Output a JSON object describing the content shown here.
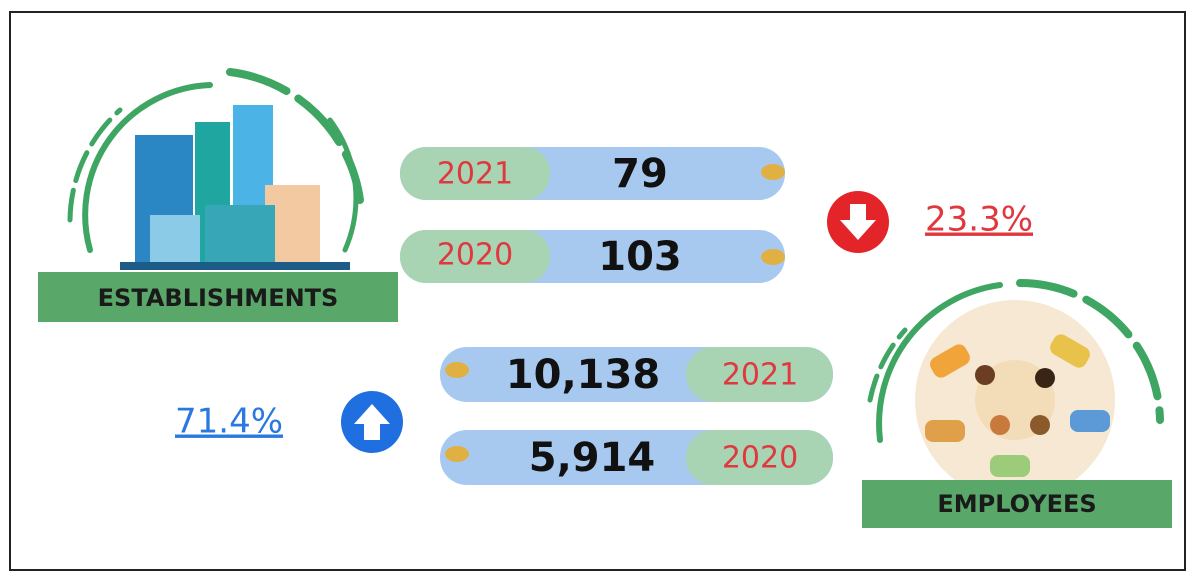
{
  "establishments": {
    "label": "ESTABLISHMENTS",
    "rows": [
      {
        "year": "2021",
        "value": "79"
      },
      {
        "year": "2020",
        "value": "103"
      }
    ],
    "change": "23.3%"
  },
  "employees": {
    "label": "EMPLOYEES",
    "rows": [
      {
        "year": "2021",
        "value": "10,138"
      },
      {
        "year": "2020",
        "value": "5,914"
      }
    ],
    "change": "71.4%"
  }
}
